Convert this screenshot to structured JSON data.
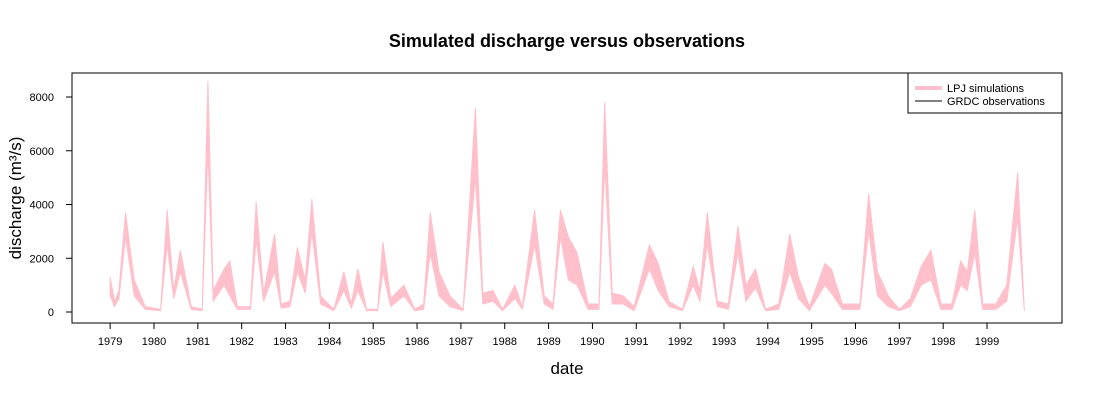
{
  "chart_data": {
    "type": "band",
    "title": "Simulated discharge versus observations",
    "xlabel": "date",
    "ylabel": "discharge (m³/s)",
    "x": [
      1979.0,
      1979.1,
      1979.2,
      1979.35,
      1979.55,
      1979.8,
      1980.15,
      1980.3,
      1980.45,
      1980.6,
      1980.85,
      1981.1,
      1981.23,
      1981.35,
      1981.6,
      1981.73,
      1981.9,
      1982.2,
      1982.33,
      1982.5,
      1982.75,
      1982.9,
      1983.1,
      1983.27,
      1983.45,
      1983.6,
      1983.8,
      1984.1,
      1984.33,
      1984.5,
      1984.65,
      1984.85,
      1985.1,
      1985.22,
      1985.4,
      1985.7,
      1985.95,
      1986.15,
      1986.3,
      1986.5,
      1986.75,
      1987.05,
      1987.33,
      1987.5,
      1987.73,
      1987.95,
      1988.23,
      1988.4,
      1988.68,
      1988.9,
      1989.1,
      1989.27,
      1989.45,
      1989.65,
      1989.9,
      1990.15,
      1990.28,
      1990.45,
      1990.7,
      1990.95,
      1991.3,
      1991.5,
      1991.75,
      1992.05,
      1992.3,
      1992.45,
      1992.62,
      1992.85,
      1993.1,
      1993.32,
      1993.5,
      1993.72,
      1993.95,
      1994.25,
      1994.5,
      1994.7,
      1994.95,
      1995.3,
      1995.45,
      1995.7,
      1996.1,
      1996.3,
      1996.5,
      1996.75,
      1997.0,
      1997.25,
      1997.5,
      1997.72,
      1997.95,
      1998.2,
      1998.4,
      1998.55,
      1998.72,
      1998.9,
      1999.2,
      1999.45,
      1999.7,
      1999.85
    ],
    "series": [
      {
        "color": "#ffc0cb",
        "values": [
          1300,
          400,
          800,
          3700,
          1200,
          200,
          100,
          3800,
          800,
          2300,
          200,
          100,
          8600,
          800,
          1600,
          1900,
          200,
          200,
          4100,
          700,
          2900,
          300,
          400,
          2400,
          1200,
          4200,
          600,
          100,
          1500,
          300,
          1600,
          100,
          100,
          2600,
          500,
          1000,
          100,
          300,
          3700,
          1500,
          600,
          100,
          7600,
          700,
          800,
          100,
          1000,
          200,
          3800,
          600,
          300,
          3800,
          2800,
          2200,
          300,
          300,
          7800,
          700,
          600,
          200,
          2500,
          1800,
          400,
          100,
          1700,
          800,
          3700,
          400,
          300,
          3200,
          1000,
          1600,
          100,
          300,
          2900,
          1300,
          200,
          1800,
          1600,
          300,
          300,
          4400,
          1500,
          600,
          100,
          500,
          1700,
          2300,
          300,
          300,
          1900,
          1500,
          3800,
          300,
          300,
          1000,
          5200,
          100
        ],
        "lower": [
          600,
          200,
          500,
          2800,
          600,
          100,
          50,
          2500,
          500,
          1500,
          100,
          50,
          6000,
          400,
          1000,
          600,
          100,
          100,
          2700,
          400,
          1500,
          150,
          200,
          1500,
          700,
          3000,
          300,
          50,
          800,
          150,
          800,
          50,
          50,
          1500,
          200,
          600,
          50,
          100,
          2200,
          600,
          200,
          50,
          5000,
          300,
          400,
          50,
          500,
          100,
          2500,
          300,
          100,
          2800,
          1200,
          1000,
          100,
          100,
          5500,
          300,
          300,
          50,
          1600,
          800,
          200,
          50,
          1000,
          400,
          2500,
          200,
          100,
          2200,
          400,
          900,
          50,
          100,
          1500,
          500,
          50,
          1000,
          700,
          100,
          100,
          3000,
          600,
          200,
          50,
          200,
          1000,
          1200,
          100,
          100,
          1000,
          800,
          2200,
          100,
          100,
          400,
          3500,
          50
        ]
      }
    ],
    "legend": {
      "position": "topright",
      "entries": [
        {
          "name": "LPJ simulations",
          "color": "#ffc0cb",
          "width": 4
        },
        {
          "name": "GRDC observations",
          "color": "#000000",
          "width": 1
        }
      ]
    },
    "xlim": [
      1978.13,
      2000.71
    ],
    "xticks": [
      1979,
      1980,
      1981,
      1982,
      1983,
      1984,
      1985,
      1986,
      1987,
      1988,
      1989,
      1990,
      1991,
      1992,
      1993,
      1994,
      1995,
      1996,
      1997,
      1998,
      1999
    ],
    "ylim": [
      -409,
      8893
    ],
    "yticks": [
      0,
      2000,
      4000,
      6000,
      8000
    ]
  }
}
